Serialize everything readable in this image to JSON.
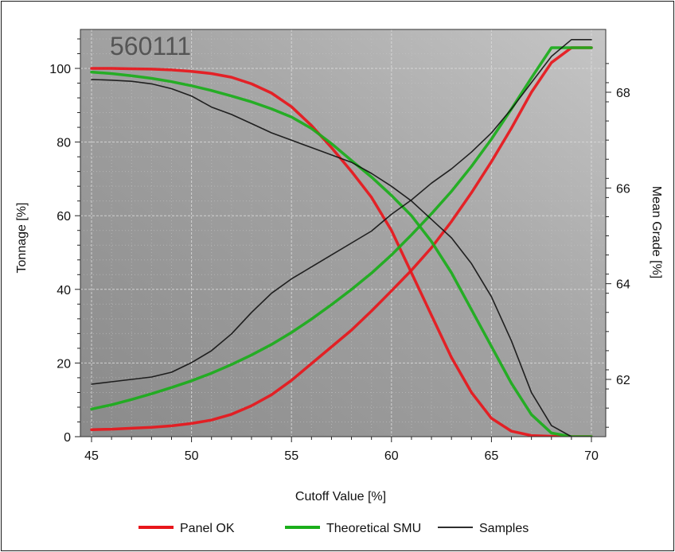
{
  "chart_data": {
    "type": "line",
    "title": "560111",
    "xlabel": "Cutoff Value [%]",
    "ylabel_left": "Tonnage [%]",
    "ylabel_right": "Mean Grade [%]",
    "xlim": [
      45,
      70
    ],
    "ylim_left": [
      0,
      110
    ],
    "ylim_right": [
      60.9,
      69.2
    ],
    "x_ticks": [
      "45",
      "50",
      "55",
      "60",
      "65",
      "70"
    ],
    "y_ticks_left": [
      "0",
      "20",
      "40",
      "60",
      "80",
      "100"
    ],
    "y_ticks_right": [
      "62",
      "64",
      "66",
      "68"
    ],
    "grid": true,
    "legend_position": "bottom",
    "colors": {
      "panel_ok": "#e8161b",
      "theoretical_smu": "#1aae1a",
      "samples": "#111111"
    },
    "series": [
      {
        "name": "Panel OK",
        "axis": "left",
        "metric": "tonnage",
        "x": [
          45,
          46,
          47,
          48,
          49,
          50,
          51,
          52,
          53,
          54,
          55,
          56,
          57,
          58,
          59,
          60,
          61,
          62,
          63,
          64,
          65,
          66,
          67,
          68,
          69,
          70
        ],
        "values": [
          100,
          100,
          99.9,
          99.8,
          99.6,
          99.2,
          98.6,
          97.6,
          95.8,
          93.3,
          89.6,
          84.5,
          78.5,
          72,
          65,
          56,
          44.5,
          33,
          21.5,
          12,
          5,
          1.5,
          0.3,
          0.1,
          0,
          0
        ]
      },
      {
        "name": "Panel OK",
        "axis": "right",
        "metric": "mean_grade",
        "x": [
          45,
          46,
          47,
          48,
          49,
          50,
          51,
          52,
          53,
          54,
          55,
          56,
          57,
          58,
          59,
          60,
          61,
          62,
          63,
          64,
          65,
          66,
          67,
          68,
          69,
          70
        ],
        "values": [
          60.95,
          60.96,
          60.98,
          61.0,
          61.03,
          61.08,
          61.15,
          61.27,
          61.45,
          61.68,
          61.98,
          62.33,
          62.68,
          63.03,
          63.43,
          63.85,
          64.28,
          64.75,
          65.3,
          65.9,
          66.55,
          67.25,
          68.0,
          68.62,
          68.93,
          68.93
        ]
      },
      {
        "name": "Theoretical SMU",
        "axis": "left",
        "metric": "tonnage",
        "x": [
          45,
          46,
          47,
          48,
          49,
          50,
          51,
          52,
          53,
          54,
          55,
          56,
          57,
          58,
          59,
          60,
          61,
          62,
          63,
          64,
          65,
          66,
          67,
          68,
          69,
          70
        ],
        "values": [
          99,
          98.6,
          98,
          97.3,
          96.4,
          95.3,
          94,
          92.5,
          90.9,
          89,
          86.8,
          83.7,
          79.6,
          75,
          70.5,
          65.5,
          60,
          53,
          44.5,
          34.5,
          24.5,
          14.5,
          6,
          1,
          0,
          0
        ]
      },
      {
        "name": "Theoretical SMU",
        "axis": "right",
        "metric": "mean_grade",
        "x": [
          45,
          46,
          47,
          48,
          49,
          50,
          51,
          52,
          53,
          54,
          55,
          56,
          57,
          58,
          59,
          60,
          61,
          62,
          63,
          64,
          65,
          66,
          67,
          68,
          69,
          70
        ],
        "values": [
          61.38,
          61.47,
          61.58,
          61.7,
          61.83,
          61.97,
          62.13,
          62.31,
          62.51,
          62.73,
          62.98,
          63.26,
          63.56,
          63.88,
          64.22,
          64.6,
          65.02,
          65.46,
          65.93,
          66.45,
          67.02,
          67.65,
          68.3,
          68.93,
          68.93,
          68.93
        ]
      },
      {
        "name": "Samples",
        "axis": "left",
        "metric": "tonnage",
        "x": [
          45,
          46,
          47,
          48,
          49,
          50,
          51,
          52,
          53,
          54,
          55,
          56,
          57,
          58,
          59,
          60,
          61,
          62,
          63,
          64,
          65,
          66,
          67,
          68,
          69,
          70
        ],
        "values": [
          97,
          96.8,
          96.5,
          95.8,
          94.5,
          92.5,
          89.5,
          87.5,
          85,
          82.5,
          80.5,
          78.5,
          76.5,
          74.5,
          71.5,
          68,
          64,
          59,
          54,
          47,
          38,
          26,
          12,
          3,
          0,
          0
        ]
      },
      {
        "name": "Samples",
        "axis": "right",
        "metric": "mean_grade",
        "x": [
          45,
          46,
          47,
          48,
          49,
          50,
          51,
          52,
          53,
          54,
          55,
          56,
          57,
          58,
          59,
          60,
          61,
          62,
          63,
          64,
          65,
          66,
          67,
          68,
          69,
          70
        ],
        "values": [
          61.9,
          61.95,
          62.0,
          62.05,
          62.15,
          62.35,
          62.6,
          62.95,
          63.4,
          63.8,
          64.1,
          64.35,
          64.6,
          64.85,
          65.1,
          65.45,
          65.75,
          66.1,
          66.4,
          66.75,
          67.15,
          67.65,
          68.2,
          68.75,
          69.1,
          69.1
        ]
      }
    ]
  }
}
